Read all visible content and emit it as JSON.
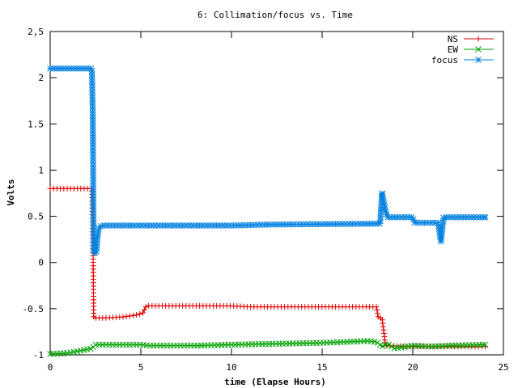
{
  "chart_data": {
    "type": "line",
    "title": "6: Collimation/focus vs. Time",
    "xlabel": "time (Elapse Hours)",
    "ylabel": "Volts",
    "xlim": [
      0,
      25
    ],
    "ylim": [
      -1,
      2.5
    ],
    "xticks": [
      0,
      5,
      10,
      15,
      20,
      25
    ],
    "xtick_labels": [
      "0",
      "5",
      "10",
      "15",
      "20",
      "25"
    ],
    "yticks": [
      -1,
      -0.5,
      0,
      0.5,
      1,
      1.5,
      2,
      2.5
    ],
    "ytick_labels": [
      "-1",
      "-0.5",
      "0",
      "0.5",
      "1",
      "1.5",
      "2",
      "2,5"
    ],
    "grid": false,
    "legend_position": "top-right",
    "series": [
      {
        "name": "NS",
        "color": "#e00000",
        "marker": "plus",
        "points": [
          [
            0.0,
            0.8
          ],
          [
            2.3,
            0.8
          ],
          [
            2.35,
            0.45
          ],
          [
            2.4,
            -0.6
          ],
          [
            3.0,
            -0.6
          ],
          [
            4.0,
            -0.59
          ],
          [
            4.7,
            -0.57
          ],
          [
            5.1,
            -0.55
          ],
          [
            5.3,
            -0.47
          ],
          [
            10.0,
            -0.47
          ],
          [
            11.0,
            -0.48
          ],
          [
            18.0,
            -0.48
          ],
          [
            18.1,
            -0.6
          ],
          [
            18.3,
            -0.6
          ],
          [
            18.5,
            -0.9
          ],
          [
            20.0,
            -0.91
          ],
          [
            24.0,
            -0.91
          ]
        ]
      },
      {
        "name": "EW",
        "color": "#00a000",
        "marker": "cross",
        "points": [
          [
            0.0,
            -0.99
          ],
          [
            1.0,
            -0.98
          ],
          [
            1.8,
            -0.95
          ],
          [
            2.3,
            -0.93
          ],
          [
            2.5,
            -0.89
          ],
          [
            5.0,
            -0.89
          ],
          [
            5.5,
            -0.9
          ],
          [
            8.0,
            -0.9
          ],
          [
            10.0,
            -0.89
          ],
          [
            15.0,
            -0.87
          ],
          [
            17.5,
            -0.85
          ],
          [
            18.0,
            -0.86
          ],
          [
            18.3,
            -0.91
          ],
          [
            18.6,
            -0.88
          ],
          [
            19.0,
            -0.93
          ],
          [
            20.0,
            -0.9
          ],
          [
            21.0,
            -0.91
          ],
          [
            22.0,
            -0.9
          ],
          [
            24.0,
            -0.89
          ]
        ]
      },
      {
        "name": "focus",
        "color": "#0080e0",
        "marker": "star",
        "points": [
          [
            0.0,
            2.1
          ],
          [
            2.3,
            2.1
          ],
          [
            2.35,
            1.6
          ],
          [
            2.4,
            0.1
          ],
          [
            2.55,
            0.1
          ],
          [
            2.6,
            0.26
          ],
          [
            2.7,
            0.39
          ],
          [
            3.0,
            0.4
          ],
          [
            10.0,
            0.4
          ],
          [
            12.0,
            0.41
          ],
          [
            18.2,
            0.42
          ],
          [
            18.3,
            0.76
          ],
          [
            18.5,
            0.56
          ],
          [
            18.6,
            0.49
          ],
          [
            20.0,
            0.49
          ],
          [
            20.1,
            0.43
          ],
          [
            21.4,
            0.43
          ],
          [
            21.55,
            0.22
          ],
          [
            21.7,
            0.49
          ],
          [
            24.0,
            0.49
          ]
        ]
      }
    ]
  }
}
